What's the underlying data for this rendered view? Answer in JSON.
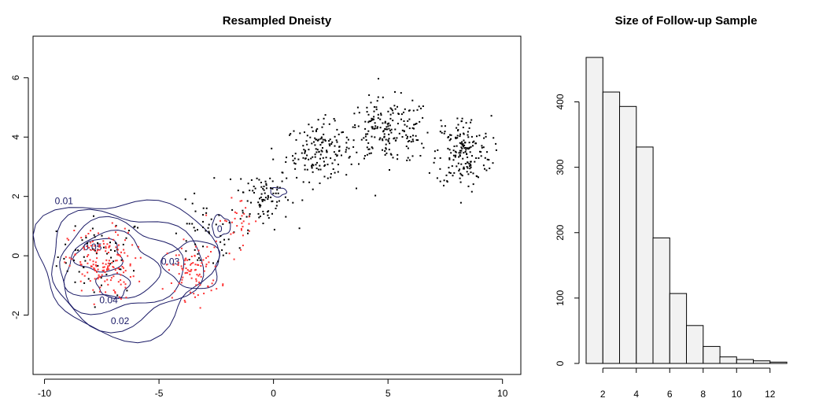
{
  "chart_data": [
    {
      "type": "scatter",
      "title": "Resampled Dneisty",
      "xlabel": "",
      "ylabel": "",
      "xlim": [
        -10.5,
        10.8
      ],
      "ylim": [
        -4.0,
        7.4
      ],
      "x_ticks": [
        -10,
        -5,
        0,
        5,
        10
      ],
      "y_ticks": [
        -2,
        0,
        2,
        4,
        6
      ],
      "grid": false,
      "legend": "none",
      "series_colors": {
        "background_points": "#000000",
        "resampled_points": "#ff3333",
        "contours": "#1a1a66"
      },
      "point_clusters": [
        {
          "name": "",
          "color": "#000000",
          "center": [
            -7.5,
            0.0
          ],
          "spread": [
            1.6,
            1.1
          ],
          "count": 60
        },
        {
          "name": "",
          "color": "#000000",
          "center": [
            -3.0,
            0.6
          ],
          "spread": [
            1.2,
            1.0
          ],
          "count": 50
        },
        {
          "name": "",
          "color": "#000000",
          "center": [
            -0.5,
            2.0
          ],
          "spread": [
            1.0,
            0.9
          ],
          "count": 90
        },
        {
          "name": "",
          "color": "#000000",
          "center": [
            2.0,
            3.5
          ],
          "spread": [
            1.2,
            0.8
          ],
          "count": 150
        },
        {
          "name": "",
          "color": "#000000",
          "center": [
            5.0,
            4.2
          ],
          "spread": [
            1.6,
            0.9
          ],
          "count": 200
        },
        {
          "name": "",
          "color": "#000000",
          "center": [
            8.3,
            3.5
          ],
          "spread": [
            1.0,
            1.0
          ],
          "count": 180
        },
        {
          "name": "",
          "color": "#ff3333",
          "center": [
            -7.5,
            -0.3
          ],
          "spread": [
            1.2,
            1.0
          ],
          "count": 160
        },
        {
          "name": "",
          "color": "#ff3333",
          "center": [
            -3.5,
            -0.5
          ],
          "spread": [
            1.0,
            0.8
          ],
          "count": 90
        },
        {
          "name": "",
          "color": "#ff3333",
          "center": [
            -1.5,
            1.2
          ],
          "spread": [
            0.8,
            0.7
          ],
          "count": 30
        }
      ],
      "contours": [
        {
          "level": "0.01",
          "center": [
            -6.5,
            -0.3
          ],
          "radii": [
            3.8,
            2.3
          ],
          "label": "0.01",
          "label_at": [
            -9.15,
            1.85
          ]
        },
        {
          "level": "0.02",
          "center": [
            -6.6,
            -0.4
          ],
          "radii": [
            3.3,
            1.9
          ],
          "label": "0.02",
          "label_at": [
            -6.7,
            -2.2
          ]
        },
        {
          "level": "0.03",
          "center": [
            -6.8,
            -0.4
          ],
          "radii": [
            2.7,
            1.5
          ],
          "label": "0.03",
          "label_at": [
            -4.5,
            -0.2
          ]
        },
        {
          "level": "0.04",
          "center": [
            -7.1,
            -0.4
          ],
          "radii": [
            2.0,
            1.1
          ],
          "label": "0.04",
          "label_at": [
            -7.2,
            -1.5
          ]
        },
        {
          "level": "0.05",
          "center": [
            -7.6,
            0.0
          ],
          "radii": [
            1.0,
            0.55
          ],
          "label": "0.05",
          "label_at": [
            -7.9,
            0.3
          ]
        },
        {
          "level": "",
          "center": [
            -3.5,
            -0.3
          ],
          "radii": [
            1.2,
            0.8
          ],
          "label": "",
          "label_at": [
            -3.5,
            -0.3
          ]
        },
        {
          "level": "",
          "center": [
            -7.0,
            -1.0
          ],
          "radii": [
            0.7,
            0.4
          ],
          "label": "",
          "label_at": [
            -7.0,
            -1.0
          ]
        },
        {
          "level": "",
          "center": [
            0.2,
            2.15
          ],
          "radii": [
            0.35,
            0.15
          ],
          "label": "",
          "label_at": [
            0.2,
            2.15
          ]
        },
        {
          "level": "",
          "center": [
            -2.3,
            1.0
          ],
          "radii": [
            0.4,
            0.35
          ],
          "label": "0",
          "label_at": [
            -2.35,
            0.9
          ]
        }
      ]
    },
    {
      "type": "bar",
      "title": "Size of Follow-up Sample",
      "xlabel": "",
      "ylabel": "",
      "bins": [
        [
          1,
          2
        ],
        [
          2,
          3
        ],
        [
          3,
          4
        ],
        [
          4,
          5
        ],
        [
          5,
          6
        ],
        [
          6,
          7
        ],
        [
          7,
          8
        ],
        [
          8,
          9
        ],
        [
          9,
          10
        ],
        [
          10,
          11
        ],
        [
          11,
          12
        ],
        [
          12,
          13
        ]
      ],
      "values": [
        468,
        415,
        393,
        331,
        192,
        107,
        58,
        26,
        10,
        6,
        4,
        2
      ],
      "xlim": [
        0.25,
        13.3
      ],
      "ylim": [
        0,
        480
      ],
      "x_ticks": [
        2,
        4,
        6,
        8,
        10,
        12
      ],
      "y_ticks": [
        0,
        100,
        200,
        300,
        400
      ],
      "bar_fill": "#f2f2f2",
      "grid": false,
      "legend": "none"
    }
  ]
}
